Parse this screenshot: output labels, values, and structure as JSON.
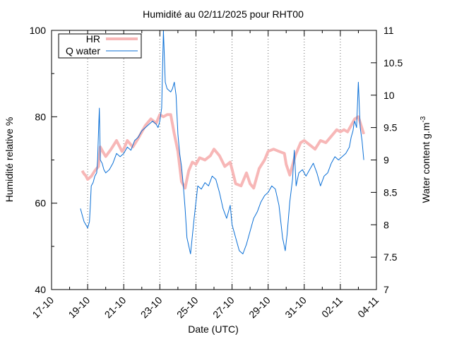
{
  "chart_data": {
    "type": "line",
    "title": "Humidité au 02/11/2025 pour RHT00",
    "xlabel": "Date (UTC)",
    "ylabel": "Humidité relative %",
    "y2label": "Water content g.m",
    "y2label_sup": "-3",
    "x_tick_labels": [
      "17-10",
      "19-10",
      "21-10",
      "23-10",
      "25-10",
      "27-10",
      "29-10",
      "31-10",
      "02-11",
      "04-11"
    ],
    "x_range_days": [
      0,
      18
    ],
    "y_ticks": [
      "40",
      "60",
      "80",
      "100"
    ],
    "ylim": [
      40,
      100
    ],
    "y2_ticks": [
      "7",
      "7.5",
      "8",
      "8.5",
      "9",
      "9.5",
      "10",
      "10.5",
      "11"
    ],
    "y2lim": [
      7,
      11
    ],
    "grid": "vertical dotted at x ticks",
    "legend_position": "top-left",
    "series": [
      {
        "name": "HR",
        "axis": "left",
        "color": "#f7b7b7",
        "x": [
          1.7,
          1.8,
          1.9,
          2.0,
          2.2,
          2.4,
          2.6,
          2.7,
          2.9,
          3.0,
          3.3,
          3.6,
          3.9,
          4.0,
          4.2,
          4.5,
          4.8,
          5.2,
          5.5,
          5.8,
          6.0,
          6.2,
          6.4,
          6.6,
          6.8,
          7.0,
          7.2,
          7.4,
          7.6,
          7.8,
          8.0,
          8.2,
          8.5,
          8.8,
          9.0,
          9.3,
          9.6,
          9.9,
          10.2,
          10.5,
          10.8,
          11.0,
          11.2,
          11.5,
          11.8,
          12.0,
          12.3,
          12.6,
          12.9,
          13.0,
          13.2,
          13.5,
          13.8,
          14.0,
          14.3,
          14.6,
          14.9,
          15.2,
          15.5,
          15.8,
          16.0,
          16.2,
          16.4,
          16.6,
          16.8,
          17.0,
          17.3
        ],
        "values": [
          67.5,
          66.8,
          66.3,
          65.5,
          66.2,
          67.5,
          68.5,
          73.0,
          71.5,
          70.8,
          72.5,
          74.5,
          72.0,
          72.5,
          74.5,
          73.0,
          75.0,
          78.0,
          79.5,
          78.5,
          80.5,
          80.0,
          80.5,
          80.5,
          76.0,
          72.0,
          65.0,
          63.5,
          67.5,
          69.5,
          69.0,
          70.5,
          70.0,
          71.0,
          72.5,
          71.0,
          68.5,
          69.5,
          64.5,
          64.0,
          67.0,
          64.5,
          63.5,
          68.0,
          70.0,
          72.0,
          72.5,
          72.0,
          71.5,
          69.0,
          66.5,
          71.0,
          74.0,
          74.5,
          73.5,
          72.5,
          74.5,
          74.0,
          75.5,
          77.0,
          76.5,
          77.0,
          76.5,
          78.0,
          79.5,
          80.0,
          76.0
        ]
      },
      {
        "name": "Q water",
        "axis": "right",
        "color": "#0a6fd6",
        "x": [
          1.6,
          1.7,
          1.8,
          1.9,
          2.0,
          2.1,
          2.15,
          2.2,
          2.3,
          2.4,
          2.5,
          2.55,
          2.6,
          2.65,
          2.7,
          2.8,
          2.9,
          3.0,
          3.2,
          3.4,
          3.6,
          3.8,
          4.0,
          4.2,
          4.4,
          4.6,
          4.8,
          5.0,
          5.2,
          5.4,
          5.6,
          5.8,
          5.9,
          6.0,
          6.1,
          6.2,
          6.3,
          6.4,
          6.6,
          6.7,
          6.8,
          6.9,
          7.0,
          7.1,
          7.2,
          7.3,
          7.4,
          7.5,
          7.7,
          7.9,
          8.1,
          8.3,
          8.5,
          8.7,
          8.9,
          9.1,
          9.3,
          9.5,
          9.7,
          9.9,
          10.0,
          10.2,
          10.4,
          10.6,
          10.8,
          11.0,
          11.2,
          11.4,
          11.6,
          11.8,
          12.0,
          12.2,
          12.4,
          12.6,
          12.8,
          12.95,
          13.05,
          13.2,
          13.35,
          13.45,
          13.55,
          13.7,
          13.9,
          14.1,
          14.3,
          14.5,
          14.7,
          14.9,
          15.1,
          15.3,
          15.5,
          15.7,
          15.9,
          16.1,
          16.3,
          16.5,
          16.6,
          16.7,
          16.75,
          16.8,
          16.9,
          17.0,
          17.1,
          17.2,
          17.3
        ],
        "values": [
          8.25,
          8.15,
          8.05,
          8.0,
          7.95,
          8.05,
          8.3,
          8.6,
          8.65,
          8.75,
          8.8,
          9.0,
          9.4,
          9.8,
          9.0,
          8.95,
          8.85,
          8.8,
          8.85,
          8.95,
          9.1,
          9.05,
          9.1,
          9.2,
          9.15,
          9.3,
          9.35,
          9.45,
          9.5,
          9.55,
          9.6,
          9.55,
          9.5,
          9.6,
          9.8,
          11.0,
          10.2,
          10.1,
          10.05,
          10.1,
          10.2,
          10.0,
          9.4,
          9.1,
          8.9,
          8.6,
          8.25,
          7.8,
          7.55,
          8.1,
          8.6,
          8.55,
          8.65,
          8.6,
          8.75,
          8.7,
          8.5,
          8.25,
          8.1,
          8.3,
          8.0,
          7.8,
          7.6,
          7.55,
          7.7,
          7.9,
          8.1,
          8.2,
          8.35,
          8.45,
          8.5,
          8.6,
          8.55,
          8.3,
          7.8,
          7.6,
          7.85,
          8.35,
          8.7,
          9.15,
          8.6,
          8.8,
          8.85,
          8.75,
          8.85,
          8.95,
          8.8,
          8.6,
          8.75,
          8.8,
          8.95,
          9.05,
          9.0,
          9.05,
          9.1,
          9.2,
          9.35,
          9.45,
          9.55,
          9.6,
          9.5,
          10.2,
          9.5,
          9.3,
          9.0
        ]
      }
    ]
  }
}
